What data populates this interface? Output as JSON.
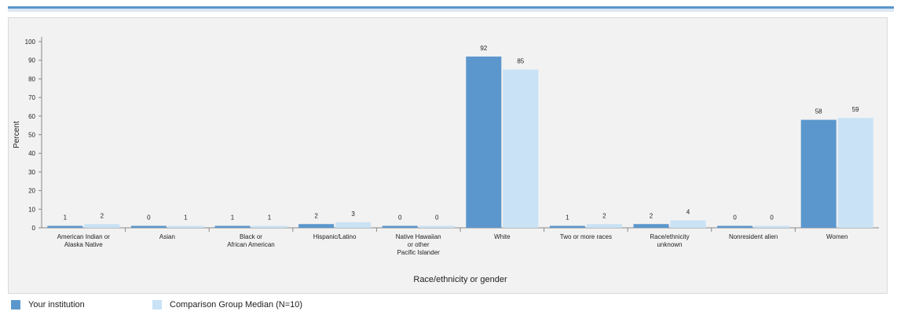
{
  "colors": {
    "institution": "#5b97cc",
    "comparison": "#c9e2f5"
  },
  "chart_data": {
    "type": "bar",
    "xlabel": "Race/ethnicity or gender",
    "ylabel": "Percent",
    "ylim": [
      0,
      100
    ],
    "yticks": [
      "0",
      "10",
      "20",
      "30",
      "40",
      "50",
      "60",
      "70",
      "80",
      "90",
      "100"
    ],
    "grid": false,
    "legend_position": "bottom",
    "categories": [
      [
        "American Indian or",
        "Alaska Native"
      ],
      [
        "Asian"
      ],
      [
        "Black or",
        "African American"
      ],
      [
        "Hispanic/Latino"
      ],
      [
        "Native Hawaiian",
        "or other",
        "Pacific Islander"
      ],
      [
        "White"
      ],
      [
        "Two or more races"
      ],
      [
        "Race/ethnicity",
        "unknown"
      ],
      [
        "Nonresident alien"
      ],
      [
        "Women"
      ]
    ],
    "series": [
      {
        "name": "Your institution",
        "values": [
          1,
          0,
          1,
          2,
          0,
          92,
          1,
          2,
          0,
          58
        ]
      },
      {
        "name": "Comparison Group Median (N=10)",
        "values": [
          2,
          1,
          1,
          3,
          0,
          85,
          2,
          4,
          0,
          59
        ]
      }
    ]
  }
}
